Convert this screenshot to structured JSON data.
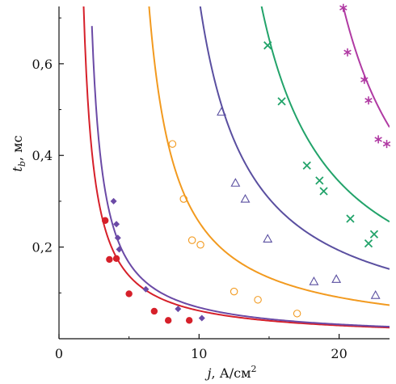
{
  "chart_data": {
    "type": "scatter",
    "xlabel_italic": "j",
    "xlabel_rest": ", А/см",
    "xlabel_sup": "2",
    "ylabel_italic": "t",
    "ylabel_sub": "b",
    "ylabel_rest": ", мс",
    "xlim": [
      0,
      23.6
    ],
    "ylim": [
      0,
      0.725
    ],
    "xticks": [
      0,
      10,
      20
    ],
    "xtick_labels": [
      "0",
      "10",
      "20"
    ],
    "yticks": [
      0.2,
      0.4,
      0.6
    ],
    "ytick_labels": [
      "0,2",
      "0,4",
      "0,6"
    ],
    "grid": false,
    "series": [
      {
        "marker": "filled-circle",
        "color": "#d6202a",
        "points": [
          [
            3.3,
            0.258
          ],
          [
            3.6,
            0.173
          ],
          [
            4.1,
            0.175
          ],
          [
            5.0,
            0.098
          ],
          [
            6.8,
            0.06
          ],
          [
            7.8,
            0.04
          ],
          [
            9.3,
            0.04
          ]
        ],
        "curve": {
          "j0": 1.0,
          "k": 0.55,
          "x_from": 1.75,
          "x_to": 23.6
        }
      },
      {
        "marker": "filled-diamond",
        "color": "#6b4aa6",
        "points": [
          [
            3.9,
            0.3
          ],
          [
            4.1,
            0.25
          ],
          [
            4.2,
            0.22
          ],
          [
            4.3,
            0.195
          ],
          [
            6.2,
            0.108
          ],
          [
            8.5,
            0.065
          ],
          [
            10.2,
            0.045
          ]
        ],
        "curve": {
          "j0": 1.5,
          "k": 0.58,
          "x_from": 2.35,
          "x_to": 23.6
        }
      },
      {
        "marker": "open-circle",
        "color": "#f29a1f",
        "points": [
          [
            8.1,
            0.425
          ],
          [
            8.9,
            0.305
          ],
          [
            9.5,
            0.215
          ],
          [
            10.1,
            0.205
          ],
          [
            12.5,
            0.103
          ],
          [
            14.2,
            0.085
          ],
          [
            17.0,
            0.055
          ]
        ],
        "curve": {
          "j0": 4.5,
          "k": 1.4,
          "x_from": 6.4,
          "x_to": 23.6
        }
      },
      {
        "marker": "open-triangle",
        "color": "#5a4fa0",
        "points": [
          [
            11.6,
            0.495
          ],
          [
            12.6,
            0.34
          ],
          [
            13.3,
            0.305
          ],
          [
            14.9,
            0.218
          ],
          [
            18.2,
            0.125
          ],
          [
            19.8,
            0.13
          ],
          [
            22.6,
            0.095
          ]
        ],
        "curve": {
          "j0": 6.5,
          "k": 2.6,
          "x_from": 9.55,
          "x_to": 23.6
        }
      },
      {
        "marker": "x-cross",
        "color": "#22a36a",
        "points": [
          [
            14.9,
            0.64
          ],
          [
            15.9,
            0.518
          ],
          [
            17.7,
            0.378
          ],
          [
            18.6,
            0.345
          ],
          [
            18.9,
            0.322
          ],
          [
            20.8,
            0.262
          ],
          [
            22.1,
            0.208
          ],
          [
            22.5,
            0.228
          ]
        ],
        "curve": {
          "j0": 9.5,
          "k": 3.6,
          "x_from": 13.9,
          "x_to": 23.6
        }
      },
      {
        "marker": "asterisk",
        "color": "#b03aa3",
        "points": [
          [
            20.3,
            0.722
          ],
          [
            20.6,
            0.625
          ],
          [
            21.8,
            0.565
          ],
          [
            22.1,
            0.52
          ],
          [
            22.8,
            0.435
          ],
          [
            23.4,
            0.425
          ]
        ],
        "curve": {
          "j0": 14.5,
          "k": 4.2,
          "x_from": 20.1,
          "x_to": 23.6
        }
      }
    ]
  }
}
